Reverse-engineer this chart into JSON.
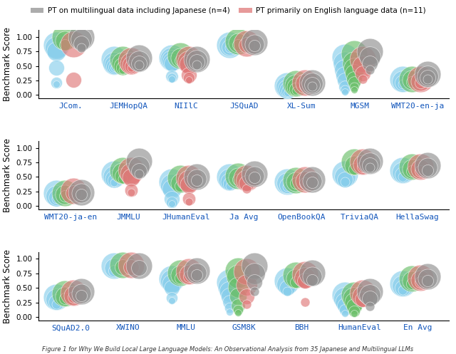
{
  "rows": [
    {
      "benchmarks": [
        "JCom.",
        "JEMHopQA",
        "NIIlC",
        "JSQuAD",
        "XL-Sum",
        "MGSM",
        "WMT20-en-ja"
      ],
      "ylabel": "Benchmark Score"
    },
    {
      "benchmarks": [
        "WMT20-ja-en",
        "JMMLU",
        "JHumanEval",
        "Ja Avg",
        "OpenBookQA",
        "TriviaQA",
        "HellaSwag"
      ],
      "ylabel": "Benchmark Score"
    },
    {
      "benchmarks": [
        "SQuAD2.0",
        "XWINO",
        "MMLU",
        "GSM8K",
        "BBH",
        "HumanEval",
        "En Avg"
      ],
      "ylabel": "Benchmark Score"
    }
  ],
  "colors": {
    "green": "#6abf69",
    "gray": "#909090",
    "red": "#e07878",
    "blue": "#87ceeb"
  },
  "legend_gray": "PT on multilingual data including Japanese (n=4)",
  "legend_red": "PT primarily on English language data (n=11)",
  "caption": "Figure 1 for Why We Build Local Large Language Models: An Observational Analysis from 35 Japanese and Multilingual LLMs",
  "data": {
    "row0": {
      "JCom.": {
        "green": [
          1.0,
          0.94,
          0.86
        ],
        "gray": [
          1.0,
          0.96,
          0.89,
          0.82
        ],
        "red": [
          0.88,
          0.26
        ],
        "blue": [
          0.86,
          0.82,
          0.75,
          0.47,
          0.22,
          0.19
        ]
      },
      "JEMHopQA": {
        "green": [
          0.62,
          0.55,
          0.5,
          0.47,
          0.44
        ],
        "gray": [
          0.64,
          0.58,
          0.54,
          0.52
        ],
        "red": [
          0.6,
          0.54,
          0.52,
          0.5,
          0.47
        ],
        "blue": [
          0.62,
          0.55,
          0.52,
          0.5,
          0.48,
          0.47
        ]
      },
      "NIIlC": {
        "green": [
          0.68,
          0.64,
          0.6
        ],
        "gray": [
          0.62,
          0.6,
          0.57,
          0.52
        ],
        "red": [
          0.62,
          0.57,
          0.53,
          0.35,
          0.3,
          0.26
        ],
        "blue": [
          0.65,
          0.62,
          0.6,
          0.57,
          0.55,
          0.33,
          0.3,
          0.28
        ]
      },
      "JSQuAD": {
        "green": [
          0.93,
          0.9,
          0.87
        ],
        "gray": [
          0.91,
          0.88,
          0.85
        ],
        "red": [
          0.89,
          0.87
        ],
        "blue": [
          0.87,
          0.85,
          0.83,
          0.82
        ]
      },
      "XL-Sum": {
        "green": [
          0.2,
          0.17,
          0.14,
          0.11,
          0.08
        ],
        "gray": [
          0.22,
          0.2,
          0.18,
          0.15
        ],
        "red": [
          0.22,
          0.2,
          0.17
        ],
        "blue": [
          0.17,
          0.14,
          0.11,
          0.09,
          0.07,
          0.04
        ]
      },
      "MGSM": {
        "green": [
          0.72,
          0.55,
          0.46,
          0.38,
          0.28,
          0.22,
          0.14,
          0.09
        ],
        "gray": [
          0.76,
          0.66,
          0.55,
          0.44
        ],
        "red": [
          0.62,
          0.5,
          0.38,
          0.28
        ],
        "blue": [
          0.66,
          0.55,
          0.44,
          0.34,
          0.25,
          0.14,
          0.09,
          0.06
        ]
      },
      "WMT20-en-ja": {
        "green": [
          0.28,
          0.26,
          0.23
        ],
        "gray": [
          0.36,
          0.33,
          0.3,
          0.28
        ],
        "red": [
          0.27,
          0.24,
          0.21
        ],
        "blue": [
          0.27,
          0.24,
          0.21,
          0.19
        ]
      }
    },
    "row1": {
      "WMT20-ja-en": {
        "green": [
          0.22,
          0.2,
          0.18
        ],
        "gray": [
          0.24,
          0.22,
          0.2
        ],
        "red": [
          0.26,
          0.22
        ],
        "blue": [
          0.22,
          0.18,
          0.15,
          0.12
        ]
      },
      "JMMLU": {
        "green": [
          0.62,
          0.57,
          0.52,
          0.47
        ],
        "gray": [
          0.78,
          0.68,
          0.6,
          0.55
        ],
        "red": [
          0.62,
          0.55,
          0.49,
          0.27,
          0.24
        ],
        "blue": [
          0.55,
          0.5,
          0.47,
          0.44,
          0.41
        ]
      },
      "JHumanEval": {
        "green": [
          0.48,
          0.4,
          0.35
        ],
        "gray": [
          0.5,
          0.47,
          0.44
        ],
        "red": [
          0.48,
          0.43,
          0.37,
          0.12,
          0.08
        ],
        "blue": [
          0.42,
          0.36,
          0.3,
          0.12,
          0.06,
          0.04
        ]
      },
      "Ja Avg": {
        "green": [
          0.52,
          0.49,
          0.46
        ],
        "gray": [
          0.55,
          0.52,
          0.49
        ],
        "red": [
          0.48,
          0.44,
          0.4,
          0.3
        ],
        "blue": [
          0.5,
          0.46,
          0.42,
          0.38,
          0.34
        ]
      },
      "OpenBookQA": {
        "green": [
          0.44,
          0.42,
          0.39
        ],
        "gray": [
          0.46,
          0.43,
          0.41
        ],
        "red": [
          0.46,
          0.43,
          0.4
        ],
        "blue": [
          0.42,
          0.39,
          0.36,
          0.33
        ]
      },
      "TriviaQA": {
        "green": [
          0.76,
          0.7,
          0.64
        ],
        "gray": [
          0.78,
          0.74,
          0.7,
          0.66
        ],
        "red": [
          0.76,
          0.72,
          0.68
        ],
        "blue": [
          0.55,
          0.5,
          0.46,
          0.42
        ]
      },
      "HellaSwag": {
        "green": [
          0.68,
          0.64,
          0.6
        ],
        "gray": [
          0.7,
          0.66,
          0.62
        ],
        "red": [
          0.68,
          0.64,
          0.6
        ],
        "blue": [
          0.62,
          0.58,
          0.54,
          0.5
        ]
      }
    },
    "row2": {
      "SQuAD2.0": {
        "green": [
          0.4,
          0.36,
          0.32
        ],
        "gray": [
          0.44,
          0.4,
          0.37
        ],
        "red": [
          0.42,
          0.37,
          0.34
        ],
        "blue": [
          0.34,
          0.3,
          0.26,
          0.22
        ]
      },
      "XWINO": {
        "green": [
          0.9,
          0.86
        ],
        "gray": [
          0.88,
          0.84
        ],
        "red": [
          0.9,
          0.86
        ],
        "blue": [
          0.88,
          0.84,
          0.8
        ]
      },
      "MMLU": {
        "green": [
          0.76,
          0.72,
          0.68
        ],
        "gray": [
          0.8,
          0.76,
          0.72
        ],
        "red": [
          0.78,
          0.74,
          0.7
        ],
        "blue": [
          0.66,
          0.62,
          0.58,
          0.5,
          0.33,
          0.28
        ]
      },
      "GSM8K": {
        "green": [
          0.8,
          0.7,
          0.52,
          0.35,
          0.2,
          0.12,
          0.07
        ],
        "gray": [
          0.88,
          0.75,
          0.6,
          0.44
        ],
        "red": [
          0.78,
          0.55,
          0.35,
          0.22
        ],
        "blue": [
          0.6,
          0.52,
          0.44,
          0.35,
          0.26,
          0.16,
          0.09
        ]
      },
      "BBH": {
        "green": [
          0.72,
          0.66,
          0.6
        ],
        "gray": [
          0.76,
          0.7,
          0.64
        ],
        "red": [
          0.74,
          0.68,
          0.62,
          0.26
        ],
        "blue": [
          0.62,
          0.56,
          0.5,
          0.44
        ]
      },
      "HumanEval": {
        "green": [
          0.38,
          0.32,
          0.26,
          0.18,
          0.1,
          0.06
        ],
        "gray": [
          0.44,
          0.38,
          0.32,
          0.18
        ],
        "red": [
          0.42,
          0.36,
          0.3,
          0.36
        ],
        "blue": [
          0.38,
          0.32,
          0.26,
          0.2,
          0.12,
          0.06
        ]
      },
      "En Avg": {
        "green": [
          0.66,
          0.62,
          0.58
        ],
        "gray": [
          0.7,
          0.66,
          0.62
        ],
        "red": [
          0.68,
          0.64,
          0.6
        ],
        "blue": [
          0.58,
          0.54,
          0.5,
          0.46
        ]
      }
    }
  }
}
